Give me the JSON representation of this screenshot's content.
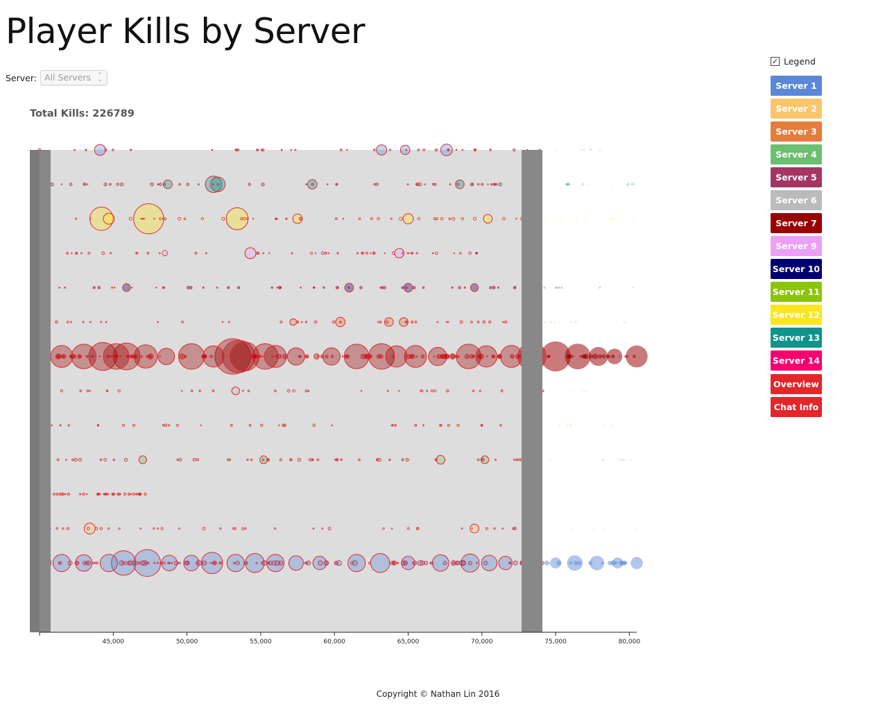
{
  "title": "Player Kills by Server",
  "server_select": {
    "label": "Server:",
    "value": "All Servers"
  },
  "total_kills_text": "Total Kills: 226789",
  "legend_label": "Legend",
  "buttons": [
    {
      "label": "Server 1",
      "color": "#5a87d6"
    },
    {
      "label": "Server 2",
      "color": "#fbc66b"
    },
    {
      "label": "Server 3",
      "color": "#e47d3c"
    },
    {
      "label": "Server 4",
      "color": "#6cbf70"
    },
    {
      "label": "Server 5",
      "color": "#a33663"
    },
    {
      "label": "Server 6",
      "color": "#bbbbbb"
    },
    {
      "label": "Server 7",
      "color": "#990000"
    },
    {
      "label": "Server 9",
      "color": "#eba0f5"
    },
    {
      "label": "Server 10",
      "color": "#000070"
    },
    {
      "label": "Server 11",
      "color": "#8cc40a"
    },
    {
      "label": "Server 12",
      "color": "#fbe51c"
    },
    {
      "label": "Server 13",
      "color": "#10938c"
    },
    {
      "label": "Server 14",
      "color": "#f7006f"
    },
    {
      "label": "Overview",
      "color": "#e2262a"
    },
    {
      "label": "Chat Info",
      "color": "#e2262a"
    }
  ],
  "footer": "Copyright © Nathan Lin 2016",
  "chart_data": {
    "type": "scatter",
    "title": "Player Kills by Server",
    "xlim": [
      40000,
      80500
    ],
    "x_ticks": [
      45000,
      50000,
      55000,
      60000,
      65000,
      70000,
      75000,
      80000
    ],
    "x_tick_labels": [
      "45,000",
      "50,000",
      "55,000",
      "60,000",
      "65,000",
      "70,000",
      "75,000",
      "80,000"
    ],
    "highlight_color": "#e2262a",
    "brush_extent": [
      40000,
      74200
    ],
    "series": [
      {
        "color": "#5a87d6",
        "x_range": [
          40000,
          80500
        ],
        "intensity": 0.08,
        "points": [
          [
            44100,
            40
          ],
          [
            63200,
            35
          ],
          [
            64800,
            30
          ],
          [
            67600,
            45
          ]
        ]
      },
      {
        "color": "#10938c",
        "x_range": [
          40000,
          80500
        ],
        "intensity": 0.25,
        "points": [
          [
            51800,
            90
          ],
          [
            52100,
            70
          ],
          [
            48700,
            25
          ],
          [
            58500,
            30
          ],
          [
            68500,
            25
          ]
        ]
      },
      {
        "color": "#fbe51c",
        "x_range": [
          40000,
          80500
        ],
        "intensity": 0.2,
        "points": [
          [
            44200,
            180
          ],
          [
            47400,
            300
          ],
          [
            53400,
            160
          ],
          [
            44700,
            40
          ],
          [
            57500,
            30
          ],
          [
            65000,
            35
          ],
          [
            70400,
            25
          ]
        ]
      },
      {
        "color": "#eba0f5",
        "x_range": [
          40500,
          71000
        ],
        "intensity": 0.12,
        "points": [
          [
            54300,
            40
          ],
          [
            64400,
            30
          ],
          [
            48500,
            10
          ]
        ]
      },
      {
        "color": "#000070",
        "x_range": [
          40000,
          80500
        ],
        "intensity": 0.18,
        "points": [
          [
            40100,
            20
          ],
          [
            45900,
            20
          ],
          [
            61000,
            25
          ],
          [
            65000,
            25
          ],
          [
            69500,
            20
          ]
        ]
      },
      {
        "color": "#e47d3c",
        "x_range": [
          40000,
          80500
        ],
        "intensity": 0.1,
        "points": [
          [
            57200,
            15
          ],
          [
            60400,
            30
          ],
          [
            63700,
            25
          ],
          [
            64700,
            25
          ]
        ]
      },
      {
        "color": "#990000",
        "x_range": [
          40000,
          80500
        ],
        "intensity": 1.0,
        "points": [
          [
            40100,
            120
          ],
          [
            41500,
            160
          ],
          [
            43000,
            200
          ],
          [
            44300,
            260
          ],
          [
            45200,
            220
          ],
          [
            45900,
            240
          ],
          [
            47200,
            180
          ],
          [
            48600,
            90
          ],
          [
            50300,
            220
          ],
          [
            51800,
            150
          ],
          [
            53100,
            420
          ],
          [
            53500,
            350
          ],
          [
            53900,
            280
          ],
          [
            55300,
            220
          ],
          [
            56000,
            160
          ],
          [
            57400,
            100
          ],
          [
            59800,
            100
          ],
          [
            61500,
            200
          ],
          [
            63200,
            220
          ],
          [
            64200,
            150
          ],
          [
            65500,
            160
          ],
          [
            67000,
            110
          ],
          [
            69100,
            200
          ],
          [
            70300,
            150
          ],
          [
            72000,
            160
          ],
          [
            73400,
            260
          ],
          [
            75000,
            300
          ],
          [
            76500,
            220
          ],
          [
            77900,
            120
          ],
          [
            79000,
            80
          ],
          [
            80500,
            160
          ]
        ]
      },
      {
        "color": "#bbbbbb",
        "x_range": [
          40000,
          80500
        ],
        "intensity": 0.06,
        "points": [
          [
            53300,
            20
          ]
        ]
      },
      {
        "color": "#8cc40a",
        "x_range": [
          40000,
          80500
        ],
        "intensity": 0.05,
        "points": []
      },
      {
        "color": "#6cbf70",
        "x_range": [
          40000,
          80500
        ],
        "intensity": 0.25,
        "points": [
          [
            47000,
            20
          ],
          [
            55200,
            20
          ],
          [
            67200,
            25
          ],
          [
            70200,
            20
          ]
        ]
      },
      {
        "color": "#e47d3c",
        "x_range": [
          40500,
          47500
        ],
        "intensity": 0.05,
        "points": []
      },
      {
        "color": "#fbc66b",
        "x_range": [
          40000,
          80500
        ],
        "intensity": 0.1,
        "points": [
          [
            43400,
            40
          ],
          [
            69500,
            25
          ]
        ]
      },
      {
        "color": "#5a87d6",
        "x_range": [
          40000,
          80500
        ],
        "intensity": 0.9,
        "points": [
          [
            40100,
            130
          ],
          [
            41500,
            100
          ],
          [
            43000,
            90
          ],
          [
            44700,
            100
          ],
          [
            45700,
            200
          ],
          [
            47300,
            240
          ],
          [
            48800,
            80
          ],
          [
            50300,
            80
          ],
          [
            51700,
            150
          ],
          [
            53300,
            100
          ],
          [
            54600,
            120
          ],
          [
            56000,
            100
          ],
          [
            57400,
            70
          ],
          [
            59000,
            60
          ],
          [
            61500,
            100
          ],
          [
            63100,
            120
          ],
          [
            65000,
            60
          ],
          [
            67200,
            90
          ],
          [
            69200,
            110
          ],
          [
            70500,
            80
          ],
          [
            71600,
            60
          ],
          [
            75000,
            40
          ],
          [
            76300,
            80
          ],
          [
            77800,
            70
          ],
          [
            79200,
            40
          ],
          [
            80500,
            50
          ]
        ]
      }
    ]
  }
}
